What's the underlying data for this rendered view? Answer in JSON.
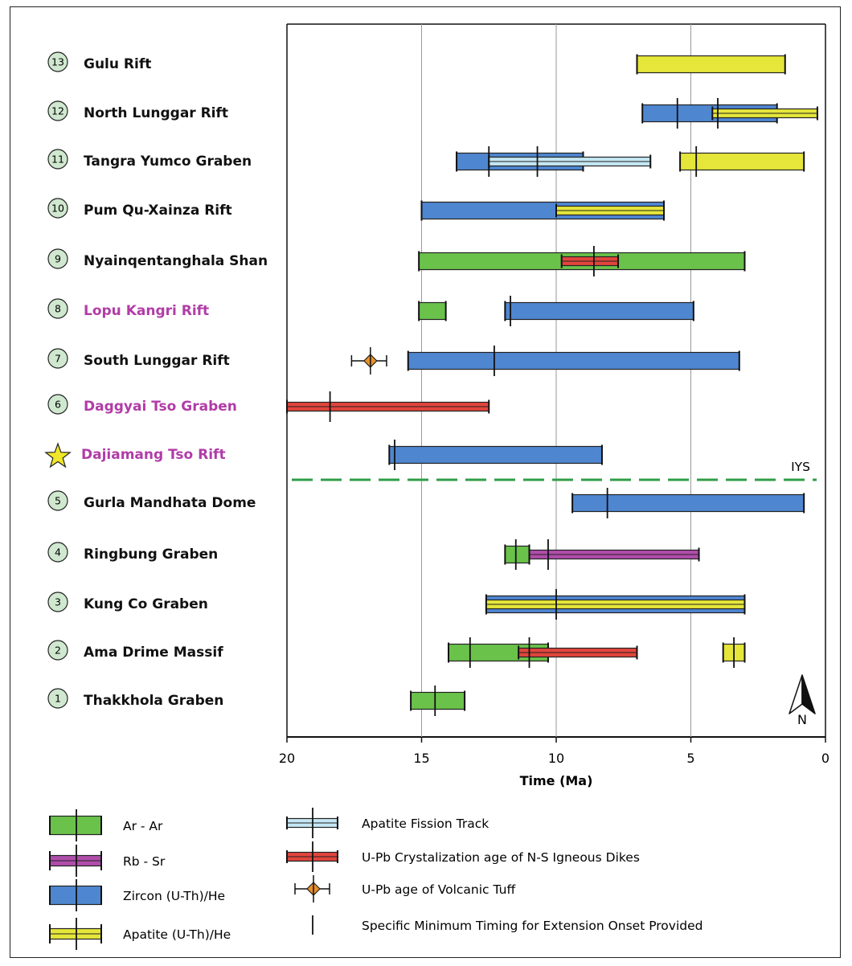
{
  "chart_data": {
    "type": "bar",
    "xlabel": "Time (Ma)",
    "xlim": [
      20,
      0
    ],
    "x_ticks": [
      20,
      15,
      10,
      5,
      0
    ],
    "grid": true,
    "colors": {
      "ArAr": "#6ac24a",
      "RbSr": "#b04dab",
      "ZHe": "#4f86d0",
      "AHe": "#e5e63a",
      "AFT": "#c5e7f4",
      "UPbDikes": "#e2453c",
      "UPbTuff": "#e8902c",
      "star": "#f0e62a",
      "iys_line": "#2f9e48",
      "purple_label": "#b13ca7",
      "circle_fill": "#cfe8cf"
    },
    "rows": [
      {
        "id": "13",
        "label": "Gulu Rift",
        "label_color": "#111111",
        "marker": "circle",
        "bars": [
          {
            "method": "AHe",
            "start": 7.0,
            "end": 1.5
          }
        ],
        "ticks": []
      },
      {
        "id": "12",
        "label": "North Lunggar Rift",
        "label_color": "#111111",
        "marker": "circle",
        "bars": [
          {
            "method": "ZHe",
            "start": 6.8,
            "end": 1.8
          },
          {
            "method": "AHe",
            "start": 4.2,
            "end": 0.3,
            "thin": true
          }
        ],
        "ticks": [
          5.5,
          4.0
        ]
      },
      {
        "id": "11",
        "label": "Tangra Yumco Graben",
        "label_color": "#111111",
        "marker": "circle",
        "bars": [
          {
            "method": "ZHe",
            "start": 13.7,
            "end": 9.0
          },
          {
            "method": "AFT",
            "start": 12.5,
            "end": 6.5,
            "thin": true
          },
          {
            "method": "AHe",
            "start": 5.4,
            "end": 0.8
          }
        ],
        "ticks": [
          12.5,
          10.7,
          4.8
        ]
      },
      {
        "id": "10",
        "label": "Pum Qu-Xainza Rift",
        "label_color": "#111111",
        "marker": "circle",
        "bars": [
          {
            "method": "ZHe",
            "start": 15.0,
            "end": 6.0
          },
          {
            "method": "AHe",
            "start": 10.0,
            "end": 6.0,
            "thin": true
          }
        ],
        "ticks": []
      },
      {
        "id": "9",
        "label": "Nyainqentanghala Shan",
        "label_color": "#111111",
        "marker": "circle",
        "bars": [
          {
            "method": "ArAr",
            "start": 15.1,
            "end": 3.0
          },
          {
            "method": "UPbDikes",
            "start": 9.8,
            "end": 7.7,
            "thin": true
          }
        ],
        "ticks": [
          8.6
        ]
      },
      {
        "id": "8",
        "label": "Lopu Kangri Rift",
        "label_color": "#b13ca7",
        "marker": "circle",
        "bars": [
          {
            "method": "ArAr",
            "start": 15.1,
            "end": 14.1
          },
          {
            "method": "ZHe",
            "start": 11.9,
            "end": 4.9
          }
        ],
        "ticks": [
          11.7
        ]
      },
      {
        "id": "7",
        "label": "South Lunggar Rift",
        "label_color": "#111111",
        "marker": "circle",
        "bars": [
          {
            "method": "ZHe",
            "start": 15.5,
            "end": 3.2
          }
        ],
        "ticks": [
          12.3
        ],
        "tuff": {
          "age": 16.9,
          "err_min": 17.6,
          "err_max": 16.3
        }
      },
      {
        "id": "6",
        "label": "Daggyai Tso Graben",
        "label_color": "#b13ca7",
        "marker": "circle",
        "bars": [
          {
            "method": "UPbDikes",
            "start": 20.0,
            "end": 12.5,
            "thin": true
          }
        ],
        "ticks": [
          18.4
        ]
      },
      {
        "id": "",
        "label": "Dajiamang Tso Rift",
        "label_color": "#b13ca7",
        "marker": "star",
        "bars": [
          {
            "method": "ZHe",
            "start": 16.2,
            "end": 8.3
          }
        ],
        "ticks": [
          16.0
        ]
      },
      {
        "id": "5",
        "label": "Gurla Mandhata Dome",
        "label_color": "#111111",
        "marker": "circle",
        "bars": [
          {
            "method": "ZHe",
            "start": 9.4,
            "end": 0.8
          }
        ],
        "ticks": [
          8.1
        ]
      },
      {
        "id": "4",
        "label": "Ringbung Graben",
        "label_color": "#111111",
        "marker": "circle",
        "bars": [
          {
            "method": "ArAr",
            "start": 11.9,
            "end": 11.0
          },
          {
            "method": "RbSr",
            "start": 11.0,
            "end": 4.7,
            "thin": true
          }
        ],
        "ticks": [
          11.5,
          10.3
        ]
      },
      {
        "id": "3",
        "label": "Kung Co Graben",
        "label_color": "#111111",
        "marker": "circle",
        "bars": [
          {
            "method": "ZHe",
            "start": 12.6,
            "end": 3.0
          },
          {
            "method": "AHe",
            "start": 12.6,
            "end": 3.0,
            "thin": true
          }
        ],
        "ticks": [
          10.0
        ]
      },
      {
        "id": "2",
        "label": "Ama Drime Massif",
        "label_color": "#111111",
        "marker": "circle",
        "bars": [
          {
            "method": "ArAr",
            "start": 14.0,
            "end": 10.3
          },
          {
            "method": "UPbDikes",
            "start": 11.4,
            "end": 7.0,
            "thin": true
          },
          {
            "method": "AHe",
            "start": 3.8,
            "end": 3.0
          }
        ],
        "ticks": [
          13.2,
          11.0,
          3.4
        ]
      },
      {
        "id": "1",
        "label": "Thakkhola Graben",
        "label_color": "#111111",
        "marker": "circle",
        "bars": [
          {
            "method": "ArAr",
            "start": 15.4,
            "end": 13.4
          }
        ],
        "ticks": [
          14.5
        ]
      }
    ],
    "annotations": {
      "iys_label": "IYS",
      "north_label": "N"
    },
    "legend": {
      "left": [
        {
          "method": "ArAr",
          "label": "Ar - Ar"
        },
        {
          "method": "RbSr",
          "label": "Rb - Sr"
        },
        {
          "method": "ZHe",
          "label": "Zircon (U-Th)/He"
        },
        {
          "method": "AHe",
          "label": "Apatite (U-Th)/He"
        }
      ],
      "right": [
        {
          "method": "AFT",
          "label": "Apatite Fission Track"
        },
        {
          "method": "UPbDikes",
          "label": "U-Pb Crystalization age of N-S Igneous Dikes"
        },
        {
          "method": "UPbTuff",
          "label": "U-Pb age of Volcanic Tuff"
        },
        {
          "method": "tick",
          "label": "Specific Minimum Timing for Extension Onset Provided"
        }
      ]
    }
  }
}
